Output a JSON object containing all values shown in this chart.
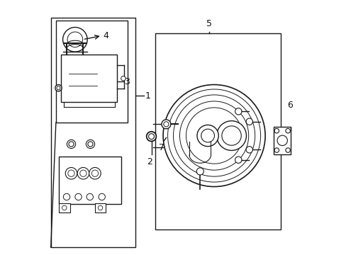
{
  "bg_color": "#ffffff",
  "line_color": "#1a1a1a",
  "line_width": 1.0,
  "label_color": "#111111",
  "label_fontsize": 9
}
